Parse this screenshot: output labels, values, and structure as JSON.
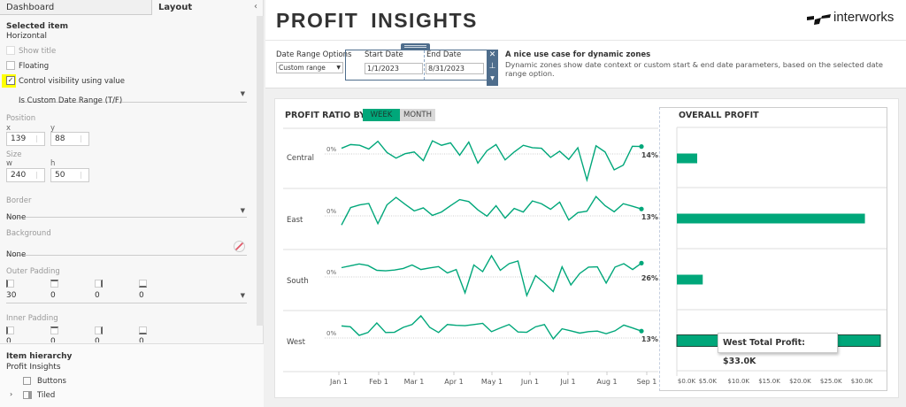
{
  "left_panel": {
    "tabs": [
      "Dashboard",
      "Layout"
    ],
    "selected_item_heading": "Selected item",
    "selected_item": "Horizontal",
    "show_title": {
      "label": "Show title",
      "checked": false,
      "disabled": true
    },
    "floating": {
      "label": "Floating",
      "checked": false
    },
    "control_visibility": {
      "label": "Control visibility using value",
      "checked": true
    },
    "visibility_field": "Is Custom Date Range (T/F)",
    "position_label": "Position",
    "x_label": "x",
    "x_value": "139",
    "y_label": "y",
    "y_value": "88",
    "size_label": "Size",
    "w_label": "w",
    "w_value": "240",
    "h_label": "h",
    "h_value": "50",
    "border_label": "Border",
    "border_value": "None",
    "background_label": "Background",
    "background_value": "None",
    "outer_padding_label": "Outer Padding",
    "outer_padding": [
      "30",
      "0",
      "0",
      "0"
    ],
    "inner_padding_label": "Inner Padding",
    "inner_padding": [
      "0",
      "0",
      "0",
      "0"
    ],
    "hierarchy_heading": "Item hierarchy",
    "hierarchy_root": "Profit Insights",
    "hierarchy_items": [
      "Buttons",
      "Tiled"
    ]
  },
  "header": {
    "title": "PROFIT  INSIGHTS",
    "logo_text": "interworks"
  },
  "filters": {
    "date_range_label": "Date Range Options",
    "date_range_value": "Custom range",
    "start_label": "Start Date",
    "start_value": "1/1/2023",
    "end_label": "End Date",
    "end_value": "8/31/2023",
    "note_title": "A nice use case for dynamic zones",
    "note_body": "Dynamic zones show date context or custom start & end date parameters, based on the selected date range option."
  },
  "profit_ratio": {
    "title": "PROFIT RATIO BY",
    "toggle": [
      "WEEK",
      "MONTH"
    ],
    "active_toggle": "WEEK"
  },
  "overall_profit": {
    "title": "OVERALL PROFIT",
    "tooltip": "West Total Profit: $33.0K"
  },
  "colors": {
    "accent": "#00a77a",
    "container_border": "#4e6d8c"
  },
  "chart_data": [
    {
      "type": "line",
      "title": "PROFIT RATIO BY WEEK",
      "x_ticks": [
        "Jan 1",
        "Feb 1",
        "Mar 1",
        "Apr 1",
        "May 1",
        "Jun 1",
        "Jul 1",
        "Aug 1",
        "Sep 1"
      ],
      "baseline_label": "0%",
      "series": [
        {
          "name": "Central",
          "end_label": "14%",
          "values": [
            10.7,
            17.7,
            16.3,
            9.3,
            23.8,
            2.8,
            -7.9,
            0.5,
            3.7,
            -12.6,
            24.7,
            16.3,
            21,
            -2.3,
            22.4,
            -17.3,
            6.1,
            17.7,
            -11.2,
            3.7,
            16.3,
            11.7,
            10.7,
            -6.5,
            5.1,
            -10.3,
            11.7,
            -49,
            15.4,
            3.7,
            -29.9,
            -21,
            14.5,
            14
          ]
        },
        {
          "name": "East",
          "end_label": "13%",
          "values": [
            -17.2,
            15.6,
            20.8,
            23.4,
            -14.6,
            20.8,
            34.8,
            21.8,
            9.4,
            15.1,
            1,
            7.3,
            19.2,
            30.7,
            27,
            11.4,
            -0.5,
            19.2,
            -4.2,
            14,
            7.3,
            28.1,
            22.9,
            12.5,
            26,
            -7.8,
            6.2,
            8.8,
            36.4,
            19.2,
            7.8,
            22.9,
            18.2,
            13
          ]
        },
        {
          "name": "South",
          "end_label": "26%",
          "values": [
            17.5,
            21,
            24.5,
            21.5,
            12.5,
            11.5,
            13,
            16,
            22.5,
            14,
            17,
            19.5,
            7.5,
            14,
            -30,
            22.5,
            10,
            40,
            12.5,
            25,
            30,
            -35,
            2.5,
            -11.5,
            -27.5,
            19,
            -15,
            6.5,
            18.5,
            19,
            -11.5,
            18.5,
            25,
            14,
            26
          ]
        },
        {
          "name": "West",
          "end_label": "13%",
          "values": [
            22.7,
            21.1,
            4.9,
            10.3,
            28.2,
            10.3,
            10.8,
            20,
            25.4,
            41.7,
            20,
            10.3,
            25.4,
            23.8,
            23.3,
            25.4,
            27.6,
            11.9,
            18.9,
            25.4,
            11.4,
            10.8,
            21.1,
            25.4,
            -1.6,
            17.3,
            13.5,
            9.2,
            11.9,
            13,
            8.1,
            13.5,
            24.3,
            18.9,
            13
          ]
        }
      ]
    },
    {
      "type": "bar",
      "title": "OVERALL PROFIT",
      "categories": [
        "Central",
        "East",
        "South",
        "West"
      ],
      "values": [
        3300,
        30500,
        4200,
        33000
      ],
      "x_ticks": [
        "$0.0K",
        "$5.0K",
        "$10.0K",
        "$15.0K",
        "$20.0K",
        "$25.0K",
        "$30.0K"
      ],
      "xlim": [
        0,
        33000
      ],
      "highlighted": "West"
    }
  ]
}
